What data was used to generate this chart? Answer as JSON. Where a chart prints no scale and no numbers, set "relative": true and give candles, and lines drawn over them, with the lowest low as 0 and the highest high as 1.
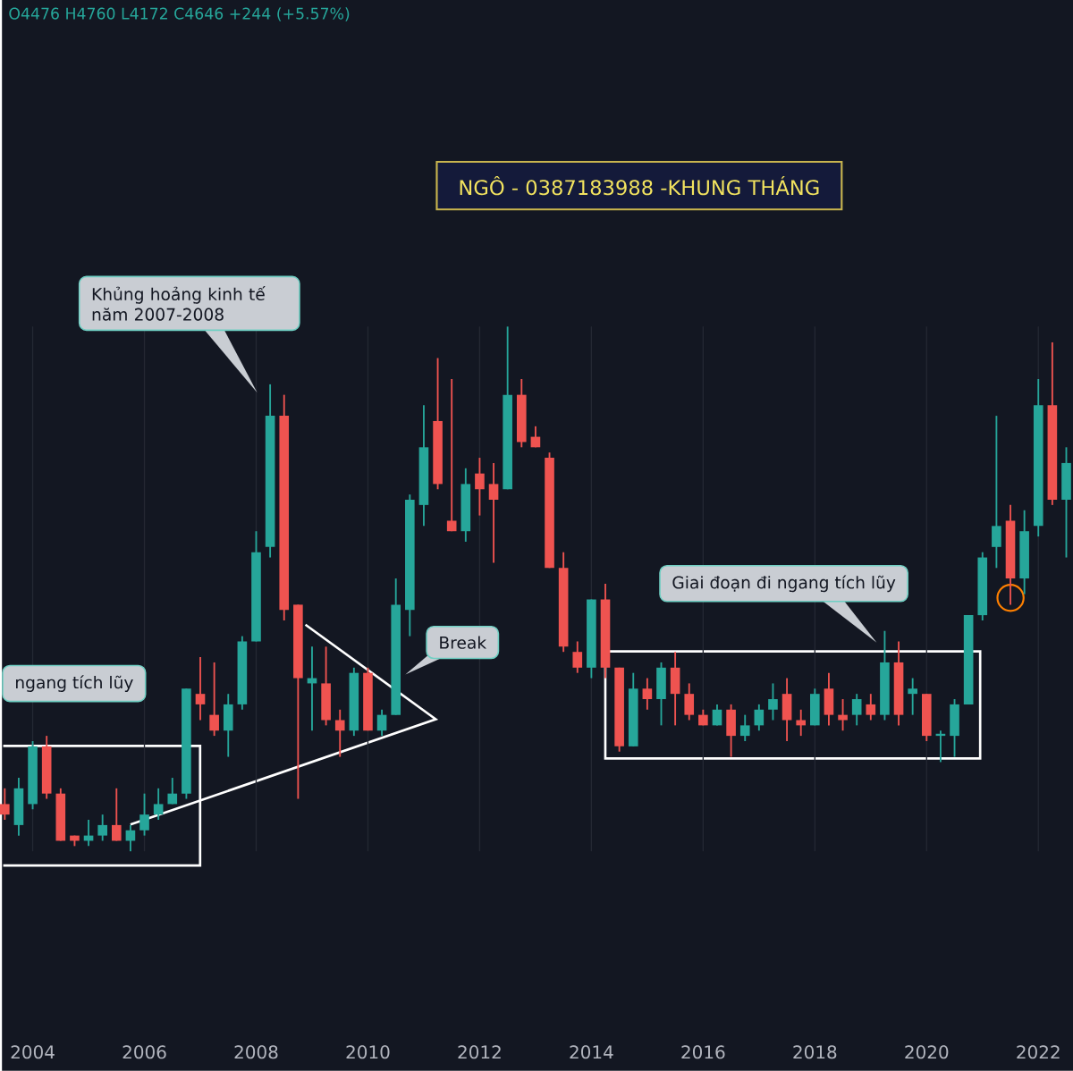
{
  "chart_data": {
    "type": "candlestick",
    "title": "NGÔ - 0387183988 -KHUNG THÁNG",
    "relative": true,
    "grid": "x",
    "x": [
      2003.5,
      2003.75,
      2004,
      2004.25,
      2004.5,
      2004.75,
      2005,
      2005.25,
      2005.5,
      2005.75,
      2006,
      2006.25,
      2006.5,
      2006.75,
      2007,
      2007.25,
      2007.5,
      2007.75,
      2008,
      2008.25,
      2008.5,
      2008.75,
      2009,
      2009.25,
      2009.5,
      2009.75,
      2010,
      2010.25,
      2010.5,
      2010.75,
      2011,
      2011.25,
      2011.5,
      2011.75,
      2012,
      2012.25,
      2012.5,
      2012.75,
      2013,
      2013.25,
      2013.5,
      2013.75,
      2014,
      2014.25,
      2014.5,
      2014.75,
      2015,
      2015.25,
      2015.5,
      2015.75,
      2016,
      2016.25,
      2016.5,
      2016.75,
      2017,
      2017.25,
      2017.5,
      2017.75,
      2018,
      2018.25,
      2018.5,
      2018.75,
      2019,
      2019.25,
      2019.5,
      2019.75,
      2020,
      2020.25,
      2020.5,
      2020.75,
      2021,
      2021.25,
      2021.5,
      2021.75,
      2022,
      2022.25,
      2022.5
    ],
    "ohlc": [
      [
        0.09,
        0.12,
        0.06,
        0.07
      ],
      [
        0.05,
        0.14,
        0.03,
        0.12
      ],
      [
        0.09,
        0.21,
        0.08,
        0.2
      ],
      [
        0.2,
        0.22,
        0.1,
        0.11
      ],
      [
        0.11,
        0.12,
        0.02,
        0.02
      ],
      [
        0.03,
        0.03,
        0.01,
        0.02
      ],
      [
        0.02,
        0.06,
        0.01,
        0.03
      ],
      [
        0.03,
        0.07,
        0.02,
        0.05
      ],
      [
        0.05,
        0.12,
        0.02,
        0.02
      ],
      [
        0.02,
        0.05,
        0,
        0.04
      ],
      [
        0.04,
        0.11,
        0.03,
        0.07
      ],
      [
        0.07,
        0.12,
        0.06,
        0.09
      ],
      [
        0.09,
        0.14,
        0.09,
        0.11
      ],
      [
        0.11,
        0.31,
        0.1,
        0.31
      ],
      [
        0.3,
        0.37,
        0.25,
        0.28
      ],
      [
        0.26,
        0.36,
        0.22,
        0.23
      ],
      [
        0.23,
        0.3,
        0.18,
        0.28
      ],
      [
        0.28,
        0.41,
        0.27,
        0.4
      ],
      [
        0.4,
        0.61,
        0.4,
        0.57
      ],
      [
        0.58,
        0.89,
        0.56,
        0.83
      ],
      [
        0.83,
        0.87,
        0.44,
        0.46
      ],
      [
        0.47,
        0.47,
        0.1,
        0.33
      ],
      [
        0.32,
        0.39,
        0.23,
        0.33
      ],
      [
        0.32,
        0.39,
        0.24,
        0.25
      ],
      [
        0.25,
        0.27,
        0.18,
        0.23
      ],
      [
        0.23,
        0.35,
        0.22,
        0.34
      ],
      [
        0.34,
        0.35,
        0.23,
        0.23
      ],
      [
        0.23,
        0.27,
        0.22,
        0.26
      ],
      [
        0.26,
        0.52,
        0.26,
        0.47
      ],
      [
        0.46,
        0.68,
        0.41,
        0.67
      ],
      [
        0.66,
        0.85,
        0.62,
        0.77
      ],
      [
        0.82,
        0.94,
        0.69,
        0.7
      ],
      [
        0.63,
        0.9,
        0.61,
        0.61
      ],
      [
        0.61,
        0.73,
        0.59,
        0.7
      ],
      [
        0.72,
        0.75,
        0.64,
        0.69
      ],
      [
        0.7,
        0.74,
        0.55,
        0.67
      ],
      [
        0.69,
        1,
        0.69,
        0.87
      ],
      [
        0.87,
        0.9,
        0.77,
        0.78
      ],
      [
        0.79,
        0.81,
        0.77,
        0.77
      ],
      [
        0.75,
        0.76,
        0.54,
        0.54
      ],
      [
        0.54,
        0.57,
        0.38,
        0.39
      ],
      [
        0.38,
        0.4,
        0.34,
        0.35
      ],
      [
        0.35,
        0.48,
        0.33,
        0.48
      ],
      [
        0.48,
        0.51,
        0.33,
        0.35
      ],
      [
        0.35,
        0.35,
        0.19,
        0.2
      ],
      [
        0.2,
        0.34,
        0.2,
        0.31
      ],
      [
        0.31,
        0.33,
        0.27,
        0.29
      ],
      [
        0.29,
        0.36,
        0.24,
        0.35
      ],
      [
        0.35,
        0.38,
        0.24,
        0.3
      ],
      [
        0.3,
        0.32,
        0.25,
        0.26
      ],
      [
        0.26,
        0.27,
        0.24,
        0.24
      ],
      [
        0.24,
        0.28,
        0.24,
        0.27
      ],
      [
        0.27,
        0.28,
        0.18,
        0.22
      ],
      [
        0.22,
        0.26,
        0.21,
        0.24
      ],
      [
        0.24,
        0.28,
        0.23,
        0.27
      ],
      [
        0.27,
        0.32,
        0.25,
        0.29
      ],
      [
        0.3,
        0.33,
        0.21,
        0.25
      ],
      [
        0.25,
        0.27,
        0.22,
        0.24
      ],
      [
        0.24,
        0.31,
        0.24,
        0.3
      ],
      [
        0.31,
        0.34,
        0.24,
        0.26
      ],
      [
        0.26,
        0.29,
        0.23,
        0.25
      ],
      [
        0.26,
        0.3,
        0.24,
        0.29
      ],
      [
        0.28,
        0.3,
        0.25,
        0.26
      ],
      [
        0.26,
        0.42,
        0.25,
        0.36
      ],
      [
        0.36,
        0.4,
        0.24,
        0.26
      ],
      [
        0.3,
        0.33,
        0.26,
        0.31
      ],
      [
        0.3,
        0.3,
        0.21,
        0.22
      ],
      [
        0.22,
        0.23,
        0.17,
        0.22
      ],
      [
        0.22,
        0.29,
        0.18,
        0.28
      ],
      [
        0.28,
        0.45,
        0.28,
        0.45
      ],
      [
        0.45,
        0.57,
        0.44,
        0.56
      ],
      [
        0.58,
        0.83,
        0.54,
        0.62
      ],
      [
        0.63,
        0.66,
        0.47,
        0.52
      ],
      [
        0.52,
        0.65,
        0.49,
        0.61
      ],
      [
        0.62,
        0.9,
        0.6,
        0.85
      ],
      [
        0.85,
        0.97,
        0.66,
        0.67
      ],
      [
        0.67,
        0.77,
        0.56,
        0.74
      ]
    ],
    "xlim": [
      2003.45,
      2022.62
    ],
    "xticks": [
      2004,
      2006,
      2008,
      2010,
      2012,
      2014,
      2016,
      2018,
      2020,
      2022
    ],
    "annotations": [
      "O4476 H4760 L4172 C4646 +244 (+5.57%)",
      "ngang tích lũy",
      "Khủng hoảng kinh tế năm 2007-2008",
      "Break",
      "Giai đoạn đi ngang tích lũy"
    ]
  }
}
